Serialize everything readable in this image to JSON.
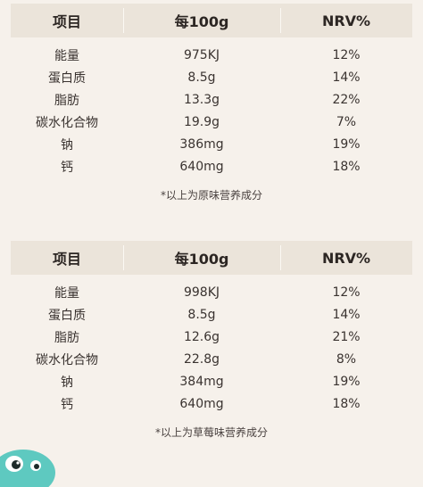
{
  "tables": [
    {
      "headers": [
        "项目",
        "每100g",
        "NRV%"
      ],
      "rows": [
        [
          "能量",
          "975KJ",
          "12%"
        ],
        [
          "蛋白质",
          "8.5g",
          "14%"
        ],
        [
          "脂肪",
          "13.3g",
          "22%"
        ],
        [
          "碳水化合物",
          "19.9g",
          "7%"
        ],
        [
          "钠",
          "386mg",
          "19%"
        ],
        [
          "钙",
          "640mg",
          "18%"
        ]
      ],
      "note": "*以上为原味营养成分"
    },
    {
      "headers": [
        "项目",
        "每100g",
        "NRV%"
      ],
      "rows": [
        [
          "能量",
          "998KJ",
          "12%"
        ],
        [
          "蛋白质",
          "8.5g",
          "14%"
        ],
        [
          "脂肪",
          "12.6g",
          "21%"
        ],
        [
          "碳水化合物",
          "22.8g",
          "8%"
        ],
        [
          "钠",
          "384mg",
          "19%"
        ],
        [
          "钙",
          "640mg",
          "18%"
        ]
      ],
      "note": "*以上为草莓味营养成分"
    }
  ],
  "colors": {
    "background": "#f6f1eb",
    "header_band": "#ebe4da",
    "text": "#2c2623",
    "mascot": "#5ec9c0"
  }
}
